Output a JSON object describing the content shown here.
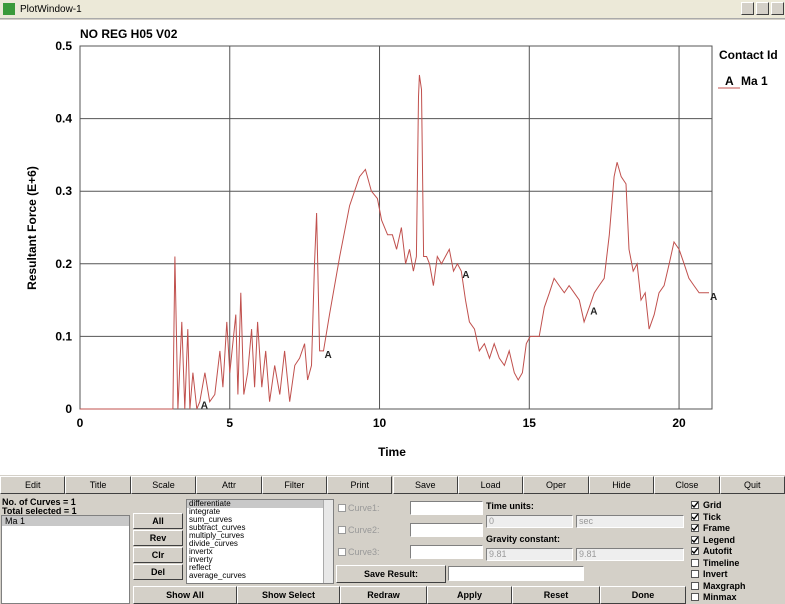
{
  "window": {
    "title": "PlotWindow-1"
  },
  "chart_data": {
    "type": "line",
    "title": "NO REG H05 V02",
    "x_label": "Time",
    "y_label": "Resultant Force (E+6)",
    "legend_title": "Contact Id",
    "x": [
      0,
      3.1,
      3.17,
      3.27,
      3.4,
      3.5,
      3.6,
      3.67,
      3.77,
      3.9,
      4.0,
      4.17,
      4.33,
      4.5,
      4.67,
      4.77,
      4.9,
      5.0,
      5.1,
      5.2,
      5.27,
      5.37,
      5.47,
      5.6,
      5.73,
      5.83,
      5.93,
      6.07,
      6.2,
      6.33,
      6.5,
      6.67,
      6.83,
      7.0,
      7.17,
      7.33,
      7.5,
      7.6,
      7.73,
      7.83,
      7.9,
      8.0,
      8.13,
      8.33,
      8.67,
      9.0,
      9.33,
      9.53,
      9.73,
      9.93,
      10.07,
      10.27,
      10.43,
      10.57,
      10.73,
      10.87,
      11.0,
      11.13,
      11.23,
      11.3,
      11.33,
      11.4,
      11.47,
      11.57,
      11.67,
      11.8,
      11.93,
      12.07,
      12.2,
      12.33,
      12.47,
      12.6,
      12.73,
      12.87,
      13.0,
      13.17,
      13.33,
      13.5,
      13.67,
      13.83,
      14.0,
      14.17,
      14.33,
      14.5,
      14.63,
      14.77,
      14.9,
      15.03,
      15.17,
      15.33,
      15.5,
      15.67,
      15.83,
      16.0,
      16.17,
      16.33,
      16.5,
      16.67,
      16.83,
      17.0,
      17.17,
      17.33,
      17.5,
      17.67,
      17.83,
      17.93,
      18.07,
      18.23,
      18.33,
      18.47,
      18.6,
      18.73,
      18.87,
      19.0,
      19.17,
      19.33,
      19.5,
      19.67,
      19.83,
      20.0,
      20.17,
      20.33,
      20.5,
      20.67,
      21.0
    ],
    "series": [
      {
        "name": "Ma 1",
        "marker": "A",
        "color": "#c0504d",
        "values": [
          0,
          0,
          0.21,
          0,
          0.12,
          0,
          0.11,
          0,
          0.05,
          0,
          0.01,
          0.05,
          0.01,
          0.02,
          0.08,
          0.03,
          0.12,
          0.05,
          0.09,
          0.13,
          0.02,
          0.16,
          0.02,
          0.05,
          0.11,
          0.03,
          0.12,
          0.03,
          0.08,
          0.01,
          0.06,
          0.02,
          0.08,
          0.01,
          0.06,
          0.07,
          0.09,
          0.04,
          0.06,
          0.2,
          0.27,
          0.08,
          0.08,
          0.13,
          0.21,
          0.28,
          0.32,
          0.33,
          0.3,
          0.29,
          0.26,
          0.24,
          0.24,
          0.22,
          0.25,
          0.2,
          0.22,
          0.19,
          0.21,
          0.43,
          0.46,
          0.44,
          0.21,
          0.21,
          0.2,
          0.17,
          0.21,
          0.2,
          0.21,
          0.22,
          0.19,
          0.2,
          0.19,
          0.15,
          0.12,
          0.11,
          0.08,
          0.09,
          0.07,
          0.09,
          0.07,
          0.06,
          0.08,
          0.05,
          0.04,
          0.05,
          0.09,
          0.1,
          0.1,
          0.1,
          0.14,
          0.16,
          0.18,
          0.17,
          0.16,
          0.17,
          0.16,
          0.15,
          0.12,
          0.14,
          0.16,
          0.17,
          0.18,
          0.24,
          0.32,
          0.34,
          0.32,
          0.31,
          0.22,
          0.19,
          0.2,
          0.15,
          0.16,
          0.11,
          0.13,
          0.16,
          0.17,
          0.2,
          0.23,
          0.22,
          0.2,
          0.18,
          0.17,
          0.16,
          0.16
        ]
      }
    ],
    "xlim": [
      0,
      21.1
    ],
    "ylim": [
      0,
      0.5
    ],
    "xticks": [
      0,
      5,
      10,
      15,
      20
    ],
    "yticks": [
      0,
      0.1,
      0.2,
      0.3,
      0.4,
      0.5
    ],
    "grid": true
  },
  "toolbar": [
    "Edit",
    "Title",
    "Scale",
    "Attr",
    "Filter",
    "Print",
    "Save",
    "Load",
    "Oper",
    "Hide",
    "Close",
    "Quit"
  ],
  "curves": {
    "count": "No. of Curves = 1",
    "selected": "Total selected = 1",
    "items": [
      "Ma 1"
    ],
    "buttons": [
      "All",
      "Rev",
      "Clr",
      "Del"
    ]
  },
  "operations": {
    "functions": [
      "differentiate",
      "integrate",
      "sum_curves",
      "subtract_curves",
      "multiply_curves",
      "divide_curves",
      "invertx",
      "inverty",
      "reflect",
      "average_curves"
    ],
    "curve_fields": [
      "Curve1:",
      "Curve2:",
      "Curve3:"
    ],
    "time_units_label": "Time units:",
    "time_units": [
      "0",
      "sec"
    ],
    "gravity_label": "Gravity constant:",
    "gravity": [
      "9.81",
      "9.81"
    ],
    "save_result": "Save Result:"
  },
  "options": [
    {
      "label": "Grid",
      "checked": true
    },
    {
      "label": "Tick",
      "checked": true
    },
    {
      "label": "Frame",
      "checked": true
    },
    {
      "label": "Legend",
      "checked": true
    },
    {
      "label": "Autofit",
      "checked": true
    },
    {
      "label": "Timeline",
      "checked": false
    },
    {
      "label": "Invert",
      "checked": false
    },
    {
      "label": "Maxgraph",
      "checked": false
    },
    {
      "label": "Minmax",
      "checked": false
    }
  ],
  "footer": [
    "Show All",
    "Show Select",
    "Redraw",
    "Apply",
    "Reset",
    "Done"
  ]
}
